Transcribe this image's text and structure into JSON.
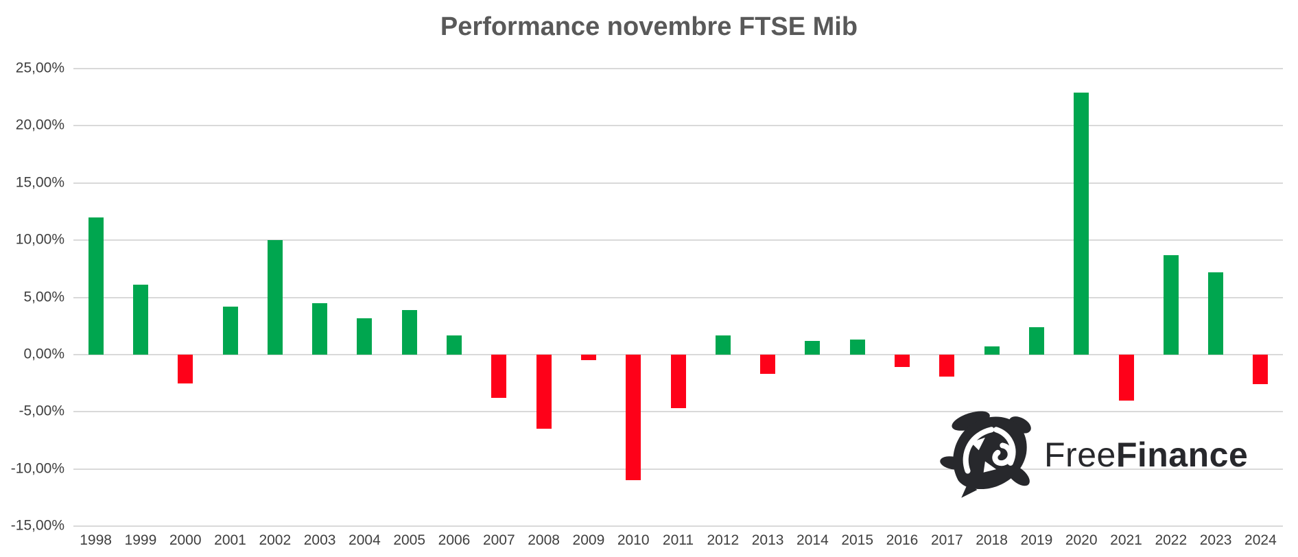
{
  "chart_data": {
    "type": "bar",
    "title": "Performance novembre FTSE Mib",
    "xlabel": "",
    "ylabel": "",
    "ylim": [
      -15,
      25
    ],
    "grid": true,
    "legend": "none",
    "value_format": "percent",
    "positive_color": "#00a64f",
    "negative_color": "#fe0119",
    "gridline_color": "#d9d9d9",
    "categories": [
      "1998",
      "1999",
      "2000",
      "2001",
      "2002",
      "2003",
      "2004",
      "2005",
      "2006",
      "2007",
      "2008",
      "2009",
      "2010",
      "2011",
      "2012",
      "2013",
      "2014",
      "2015",
      "2016",
      "2017",
      "2018",
      "2019",
      "2020",
      "2021",
      "2022",
      "2023",
      "2024"
    ],
    "values": [
      12.0,
      6.1,
      -2.5,
      4.2,
      10.0,
      4.5,
      3.2,
      3.9,
      1.7,
      -3.8,
      -6.5,
      -0.5,
      -11.0,
      -4.7,
      1.7,
      -1.7,
      1.2,
      1.3,
      -1.1,
      -1.9,
      0.7,
      2.4,
      22.9,
      -4.0,
      8.7,
      7.2,
      -2.6
    ],
    "y_ticks": [
      {
        "value": 25,
        "label": "25,00%"
      },
      {
        "value": 20,
        "label": "20,00%"
      },
      {
        "value": 15,
        "label": "15,00%"
      },
      {
        "value": 10,
        "label": "10,00%"
      },
      {
        "value": 5,
        "label": "5,00%"
      },
      {
        "value": 0,
        "label": "0,00%"
      },
      {
        "value": -5,
        "label": "-5,00%"
      },
      {
        "value": -10,
        "label": "-10,00%"
      },
      {
        "value": -15,
        "label": "-15,00%"
      }
    ]
  },
  "branding": {
    "free": "Free",
    "finance": "Finance",
    "color": "#27282c"
  }
}
